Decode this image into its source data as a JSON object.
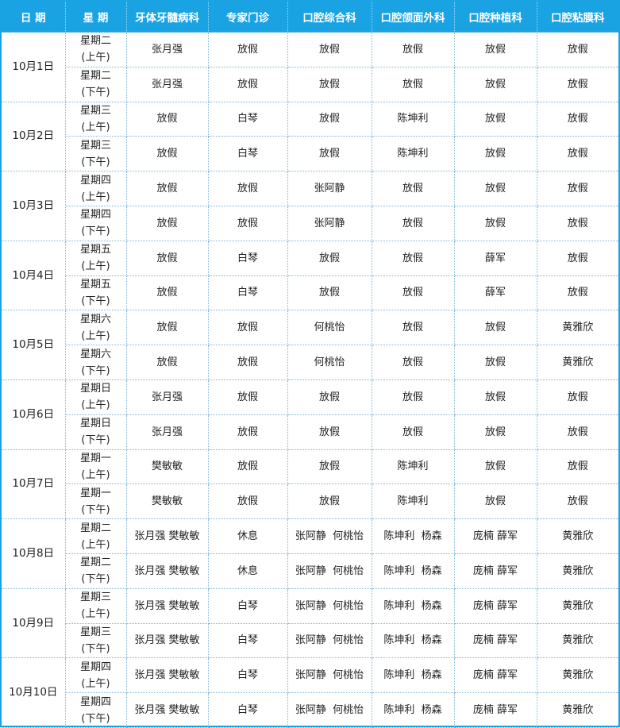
{
  "header": [
    "日 期",
    "星 期",
    "牙体牙髓病科",
    "专家门诊",
    "口腔综合科",
    "口腔颌面外科",
    "口腔种植科",
    "口腔粘膜科"
  ],
  "days": [
    {
      "date": "10月1日",
      "sessions": [
        {
          "weekday": "星期二",
          "period": "(上午)",
          "cells": [
            "张月强",
            "放假",
            "放假",
            "放假",
            "放假",
            "放假"
          ]
        },
        {
          "weekday": "星期二",
          "period": "(下午)",
          "cells": [
            "张月强",
            "放假",
            "放假",
            "放假",
            "放假",
            "放假"
          ]
        }
      ]
    },
    {
      "date": "10月2日",
      "sessions": [
        {
          "weekday": "星期三",
          "period": "(上午)",
          "cells": [
            "放假",
            "白琴",
            "放假",
            "陈坤利",
            "放假",
            "放假"
          ]
        },
        {
          "weekday": "星期三",
          "period": "(下午)",
          "cells": [
            "放假",
            "白琴",
            "放假",
            "陈坤利",
            "放假",
            "放假"
          ]
        }
      ]
    },
    {
      "date": "10月3日",
      "sessions": [
        {
          "weekday": "星期四",
          "period": "(上午)",
          "cells": [
            "放假",
            "放假",
            "张阿静",
            "放假",
            "放假",
            "放假"
          ]
        },
        {
          "weekday": "星期四",
          "period": "(下午)",
          "cells": [
            "放假",
            "放假",
            "张阿静",
            "放假",
            "放假",
            "放假"
          ]
        }
      ]
    },
    {
      "date": "10月4日",
      "sessions": [
        {
          "weekday": "星期五",
          "period": "(上午)",
          "cells": [
            "放假",
            "白琴",
            "放假",
            "放假",
            "薛军",
            "放假"
          ]
        },
        {
          "weekday": "星期五",
          "period": "(下午)",
          "cells": [
            "放假",
            "白琴",
            "放假",
            "放假",
            "薛军",
            "放假"
          ]
        }
      ]
    },
    {
      "date": "10月5日",
      "sessions": [
        {
          "weekday": "星期六",
          "period": "(上午)",
          "cells": [
            "放假",
            "放假",
            "何桃怡",
            "放假",
            "放假",
            "黄雅欣"
          ]
        },
        {
          "weekday": "星期六",
          "period": "(下午)",
          "cells": [
            "放假",
            "放假",
            "何桃怡",
            "放假",
            "放假",
            "黄雅欣"
          ]
        }
      ]
    },
    {
      "date": "10月6日",
      "sessions": [
        {
          "weekday": "星期日",
          "period": "(上午)",
          "cells": [
            "张月强",
            "放假",
            "放假",
            "放假",
            "放假",
            "放假"
          ]
        },
        {
          "weekday": "星期日",
          "period": "(下午)",
          "cells": [
            "张月强",
            "放假",
            "放假",
            "放假",
            "放假",
            "放假"
          ]
        }
      ]
    },
    {
      "date": "10月7日",
      "sessions": [
        {
          "weekday": "星期一",
          "period": "(上午)",
          "cells": [
            "樊敏敏",
            "放假",
            "放假",
            "陈坤利",
            "放假",
            "放假"
          ]
        },
        {
          "weekday": "星期一",
          "period": "(下午)",
          "cells": [
            "樊敏敏",
            "放假",
            "放假",
            "陈坤利",
            "放假",
            "放假"
          ]
        }
      ]
    },
    {
      "date": "10月8日",
      "sessions": [
        {
          "weekday": "星期二",
          "period": "(上午)",
          "cells": [
            "张月强 樊敏敏",
            "休息",
            "张阿静  何桃怡",
            "陈坤利  杨森",
            "庞楠 薛军",
            "黄雅欣"
          ]
        },
        {
          "weekday": "星期二",
          "period": "(下午)",
          "cells": [
            "张月强 樊敏敏",
            "休息",
            "张阿静  何桃怡",
            "陈坤利  杨森",
            "庞楠 薛军",
            "黄雅欣"
          ]
        }
      ]
    },
    {
      "date": "10月9日",
      "sessions": [
        {
          "weekday": "星期三",
          "period": "(上午)",
          "cells": [
            "张月强 樊敏敏",
            "白琴",
            "张阿静  何桃怡",
            "陈坤利  杨森",
            "庞楠 薛军",
            "黄雅欣"
          ]
        },
        {
          "weekday": "星期三",
          "period": "(下午)",
          "cells": [
            "张月强 樊敏敏",
            "白琴",
            "张阿静  何桃怡",
            "陈坤利  杨森",
            "庞楠 薛军",
            "黄雅欣"
          ]
        }
      ]
    },
    {
      "date": "10月10日",
      "sessions": [
        {
          "weekday": "星期四",
          "period": "(上午)",
          "cells": [
            "张月强 樊敏敏",
            "白琴",
            "张阿静  何桃怡",
            "陈坤利  杨森",
            "庞楠 薛军",
            "黄雅欣"
          ]
        },
        {
          "weekday": "星期四",
          "period": "(下午)",
          "cells": [
            "张月强 樊敏敏",
            "白琴",
            "张阿静  何桃怡",
            "陈坤利  杨森",
            "庞楠 薛军",
            "黄雅欣"
          ]
        }
      ]
    }
  ]
}
